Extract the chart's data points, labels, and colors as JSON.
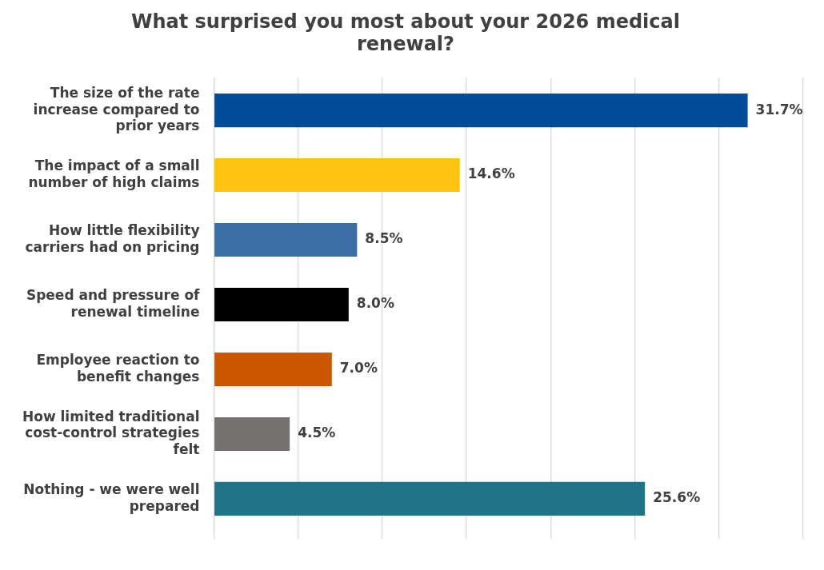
{
  "chart_data": {
    "type": "bar",
    "orientation": "horizontal",
    "title": "What surprised you most about your 2026 medical renewal?",
    "categories": [
      "The size of the rate increase compared to prior years",
      "The impact of a small number of high claims",
      "How little flexibility carriers had on pricing",
      "Speed and pressure of renewal timeline",
      "Employee reaction to benefit changes",
      "How limited traditional cost-control strategies felt",
      "Nothing - we were well prepared"
    ],
    "values": [
      31.7,
      14.6,
      8.5,
      8.0,
      7.0,
      4.5,
      25.6
    ],
    "colors": [
      "#004c97",
      "#ffc20e",
      "#3a6ea5",
      "#000000",
      "#cc5500",
      "#767171",
      "#1f7489"
    ],
    "value_labels": [
      "31.7%",
      "14.6%",
      "8.5%",
      "8.0%",
      "7.0%",
      "4.5%",
      "25.6%"
    ],
    "xlim": [
      0,
      35
    ],
    "xticks": [
      {
        "value": 0,
        "label": null
      },
      {
        "value": 5,
        "label": null
      },
      {
        "value": 10,
        "label": null
      },
      {
        "value": 15,
        "label": null
      },
      {
        "value": 20,
        "label": null
      },
      {
        "value": 25,
        "label": null
      },
      {
        "value": 30,
        "label": null
      },
      {
        "value": 35,
        "label": null
      }
    ],
    "tick_labels": "y",
    "grid": "x",
    "legend": false
  }
}
